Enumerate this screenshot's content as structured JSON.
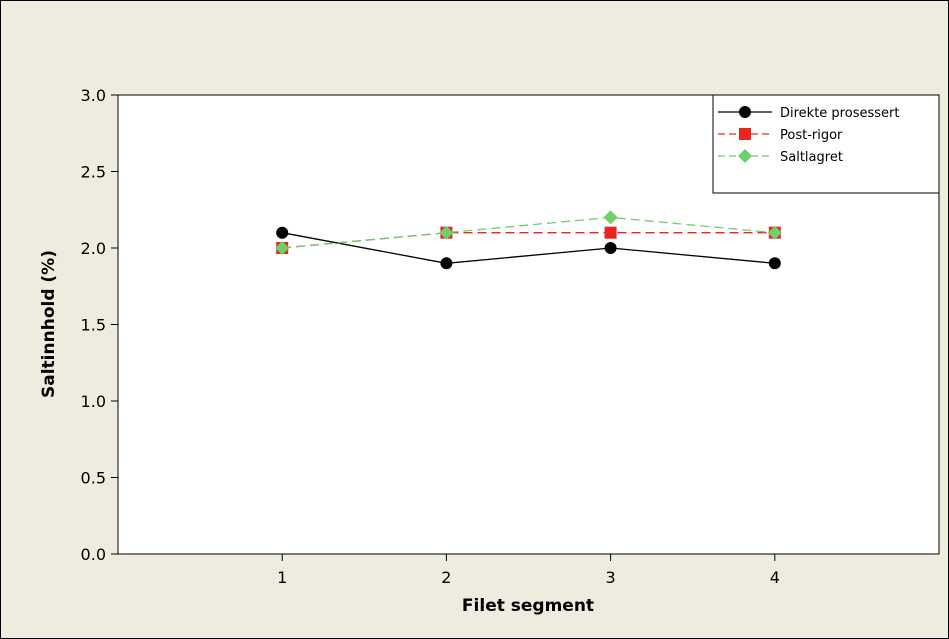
{
  "chart_data": {
    "type": "line",
    "title": "",
    "xlabel": "Filet segment",
    "ylabel": "Saltinnhold (%)",
    "categories": [
      "1",
      "2",
      "3",
      "4"
    ],
    "x": [
      1,
      2,
      3,
      4
    ],
    "xlim": [
      0,
      5
    ],
    "ylim": [
      0,
      3
    ],
    "yticks": [
      "0.0",
      "0.5",
      "1.0",
      "1.5",
      "2.0",
      "2.5",
      "3.0"
    ],
    "grid": false,
    "legend_position": "top-right",
    "series": [
      {
        "name": "Direkte prosessert",
        "values": [
          2.1,
          1.9,
          2.0,
          1.9
        ],
        "color": "#000000",
        "marker": "circle",
        "line": "solid"
      },
      {
        "name": "Post-rigor",
        "values": [
          2.0,
          2.1,
          2.1,
          2.1
        ],
        "color": "#e8261f",
        "marker": "square",
        "line": "dashed"
      },
      {
        "name": "Saltlagret",
        "values": [
          2.0,
          2.1,
          2.2,
          2.1
        ],
        "color": "#6fcf6a",
        "marker": "diamond",
        "line": "dashed"
      }
    ],
    "colors": {
      "background": "#efebdf",
      "plot_area": "#ffffff"
    }
  }
}
